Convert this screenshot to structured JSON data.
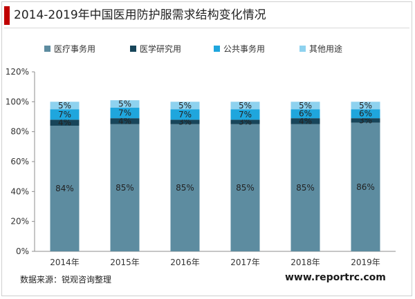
{
  "title": "2014-2019年中国医用防护服需求结构变化情况",
  "source_label": "数据来源：锐观咨询整理",
  "website": "www.reportrc.com",
  "chart_data": {
    "type": "bar",
    "stacked": true,
    "categories": [
      "2014年",
      "2015年",
      "2016年",
      "2017年",
      "2018年",
      "2019年"
    ],
    "series": [
      {
        "name": "医疗事务用",
        "color": "#5d8ca0",
        "values": [
          84,
          85,
          85,
          85,
          85,
          86
        ],
        "labels": [
          "84%",
          "85%",
          "85%",
          "85%",
          "85%",
          "86%"
        ]
      },
      {
        "name": "医学研究用",
        "color": "#17455a",
        "values": [
          4,
          4,
          3,
          3,
          4,
          3
        ],
        "labels": [
          "4%",
          "4%",
          "3%",
          "3%",
          "4%",
          "3%"
        ]
      },
      {
        "name": "公共事务用",
        "color": "#1fa6dd",
        "values": [
          7,
          7,
          7,
          7,
          6,
          6
        ],
        "labels": [
          "7%",
          "7%",
          "7%",
          "7%",
          "6%",
          "6%"
        ]
      },
      {
        "name": "其他用途",
        "color": "#8ed2ef",
        "values": [
          5,
          5,
          5,
          5,
          5,
          5
        ],
        "labels": [
          "5%",
          "5%",
          "5%",
          "5%",
          "5%",
          "5%"
        ]
      }
    ],
    "y_ticks": [
      "0%",
      "20%",
      "40%",
      "60%",
      "80%",
      "100%",
      "120%"
    ],
    "ylim": [
      0,
      120
    ],
    "grid": false,
    "legend_position": "top"
  }
}
